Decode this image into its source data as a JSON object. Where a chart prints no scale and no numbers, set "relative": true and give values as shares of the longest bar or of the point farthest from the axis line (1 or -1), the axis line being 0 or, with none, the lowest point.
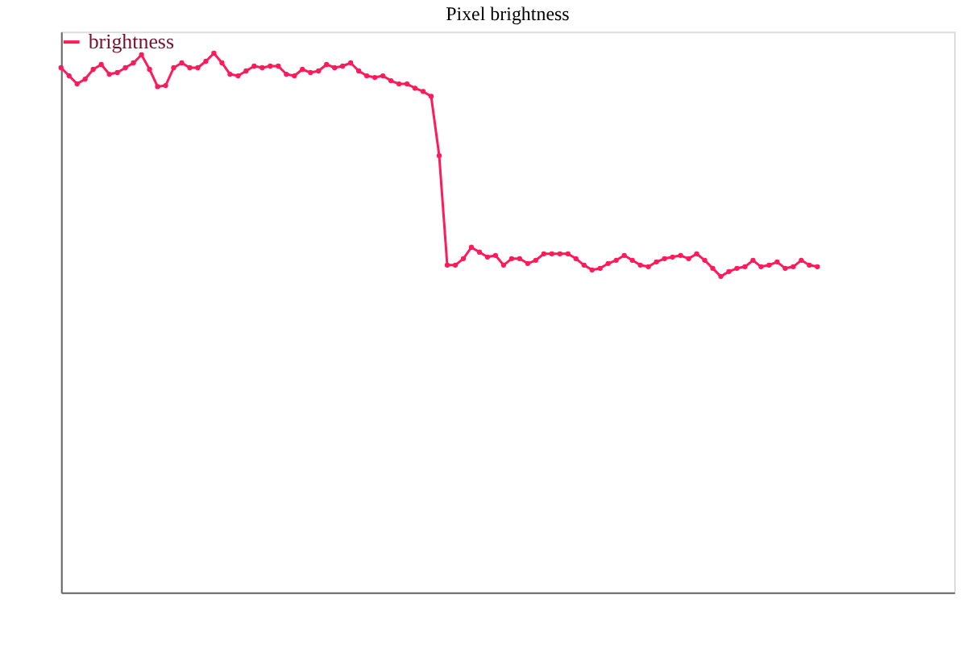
{
  "chart_data": {
    "type": "line",
    "title": "Pixel brightness",
    "relative": true,
    "grid": false,
    "legend": "top left",
    "marker": "circle",
    "line_style": "solid",
    "categories": [
      null,
      null,
      null,
      null,
      null,
      null,
      null,
      null,
      null,
      null,
      null,
      null,
      null,
      null,
      null,
      null,
      null,
      null,
      null,
      null,
      null,
      null,
      null,
      null,
      null,
      null,
      null,
      null,
      null,
      null,
      null,
      null,
      null,
      null,
      null,
      null,
      null,
      null,
      null,
      null,
      null,
      null,
      null,
      null,
      null,
      null,
      null,
      null,
      null,
      null,
      null,
      null,
      null,
      null,
      null,
      null,
      null,
      null,
      null,
      null,
      null,
      null,
      null,
      null,
      null,
      null,
      null,
      null,
      null,
      null,
      null,
      null,
      null,
      null,
      null,
      null,
      null,
      null,
      null,
      null,
      null,
      null,
      null,
      null,
      null,
      null,
      null,
      null,
      null,
      null,
      null,
      null,
      null,
      null,
      null,
      null,
      null,
      null,
      null,
      null,
      null,
      null,
      null,
      null,
      null,
      null,
      null,
      null,
      null,
      null,
      null,
      null
    ],
    "series": [
      {
        "name": "brightness",
        "color": "#ff1a5a",
        "values": [
          0.973,
          0.958,
          0.943,
          0.952,
          0.97,
          0.979,
          0.961,
          0.964,
          0.973,
          0.982,
          0.997,
          0.97,
          0.938,
          0.94,
          0.973,
          0.982,
          0.973,
          0.973,
          0.985,
          1.0,
          0.982,
          0.961,
          0.958,
          0.967,
          0.976,
          0.973,
          0.976,
          0.976,
          0.961,
          0.958,
          0.97,
          0.964,
          0.967,
          0.979,
          0.973,
          0.976,
          0.982,
          0.967,
          0.958,
          0.955,
          0.958,
          0.949,
          0.943,
          0.943,
          0.935,
          0.929,
          0.92,
          0.81,
          0.607,
          0.607,
          0.619,
          0.64,
          0.631,
          0.622,
          0.625,
          0.607,
          0.619,
          0.619,
          0.61,
          0.616,
          0.628,
          0.628,
          0.628,
          0.628,
          0.619,
          0.607,
          0.598,
          0.601,
          0.61,
          0.616,
          0.625,
          0.616,
          0.607,
          0.604,
          0.613,
          0.619,
          0.622,
          0.625,
          0.619,
          0.628,
          0.616,
          0.601,
          0.586,
          0.595,
          0.601,
          0.604,
          0.616,
          0.604,
          0.607,
          0.613,
          0.601,
          0.604,
          0.616,
          0.607,
          0.604,
          null,
          null,
          null,
          null,
          null,
          null,
          null,
          null,
          null,
          null,
          null,
          null,
          null,
          null,
          null,
          null,
          null
        ]
      }
    ]
  }
}
